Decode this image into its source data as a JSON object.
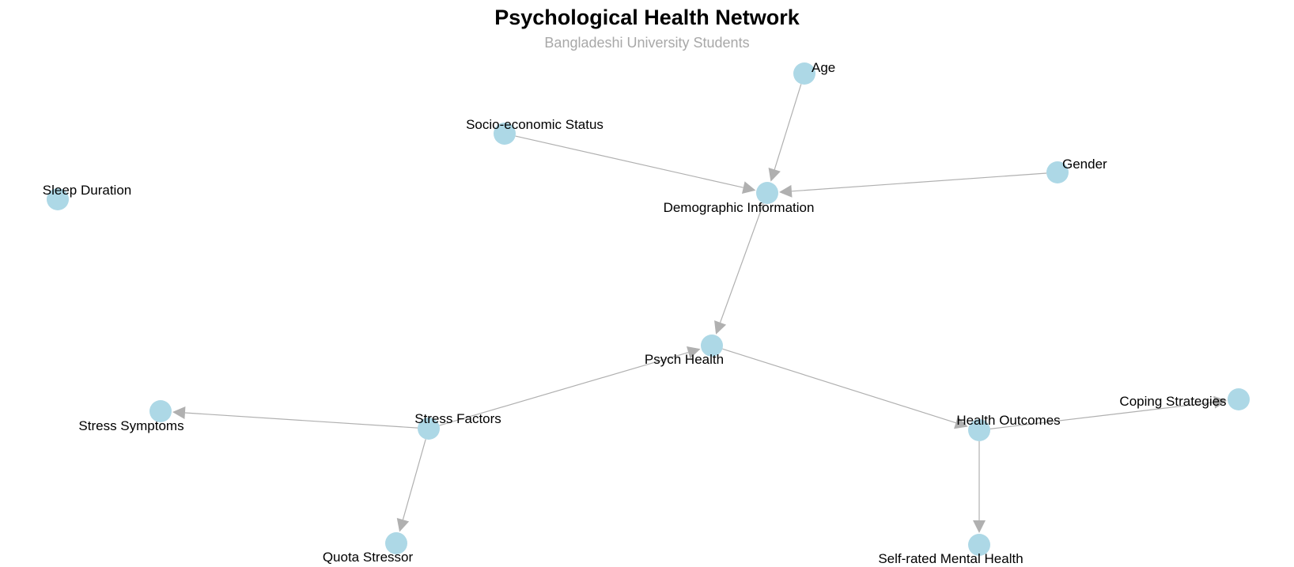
{
  "title": "Psychological Health Network",
  "subtitle": "Bangladeshi University Students",
  "node_color": "#add8e6",
  "edge_color": "#b0b0b0",
  "nodes": [
    {
      "id": "age",
      "label": "Age"
    },
    {
      "id": "ses",
      "label": "Socio-economic Status"
    },
    {
      "id": "gender",
      "label": "Gender"
    },
    {
      "id": "demo",
      "label": "Demographic Information"
    },
    {
      "id": "sleep",
      "label": "Sleep Duration"
    },
    {
      "id": "psych",
      "label": "Psych Health"
    },
    {
      "id": "symptoms",
      "label": "Stress Symptoms"
    },
    {
      "id": "stress",
      "label": "Stress Factors"
    },
    {
      "id": "health",
      "label": "Health Outcomes"
    },
    {
      "id": "coping",
      "label": "Coping Strategies"
    },
    {
      "id": "quota",
      "label": "Quota Stressor"
    },
    {
      "id": "selfrated",
      "label": "Self-rated Mental Health"
    }
  ],
  "edges": [
    {
      "from": "age",
      "to": "demo"
    },
    {
      "from": "ses",
      "to": "demo"
    },
    {
      "from": "gender",
      "to": "demo"
    },
    {
      "from": "demo",
      "to": "psych"
    },
    {
      "from": "stress",
      "to": "psych"
    },
    {
      "from": "psych",
      "to": "health"
    },
    {
      "from": "stress",
      "to": "symptoms"
    },
    {
      "from": "stress",
      "to": "quota"
    },
    {
      "from": "health",
      "to": "coping"
    },
    {
      "from": "health",
      "to": "selfrated"
    }
  ]
}
